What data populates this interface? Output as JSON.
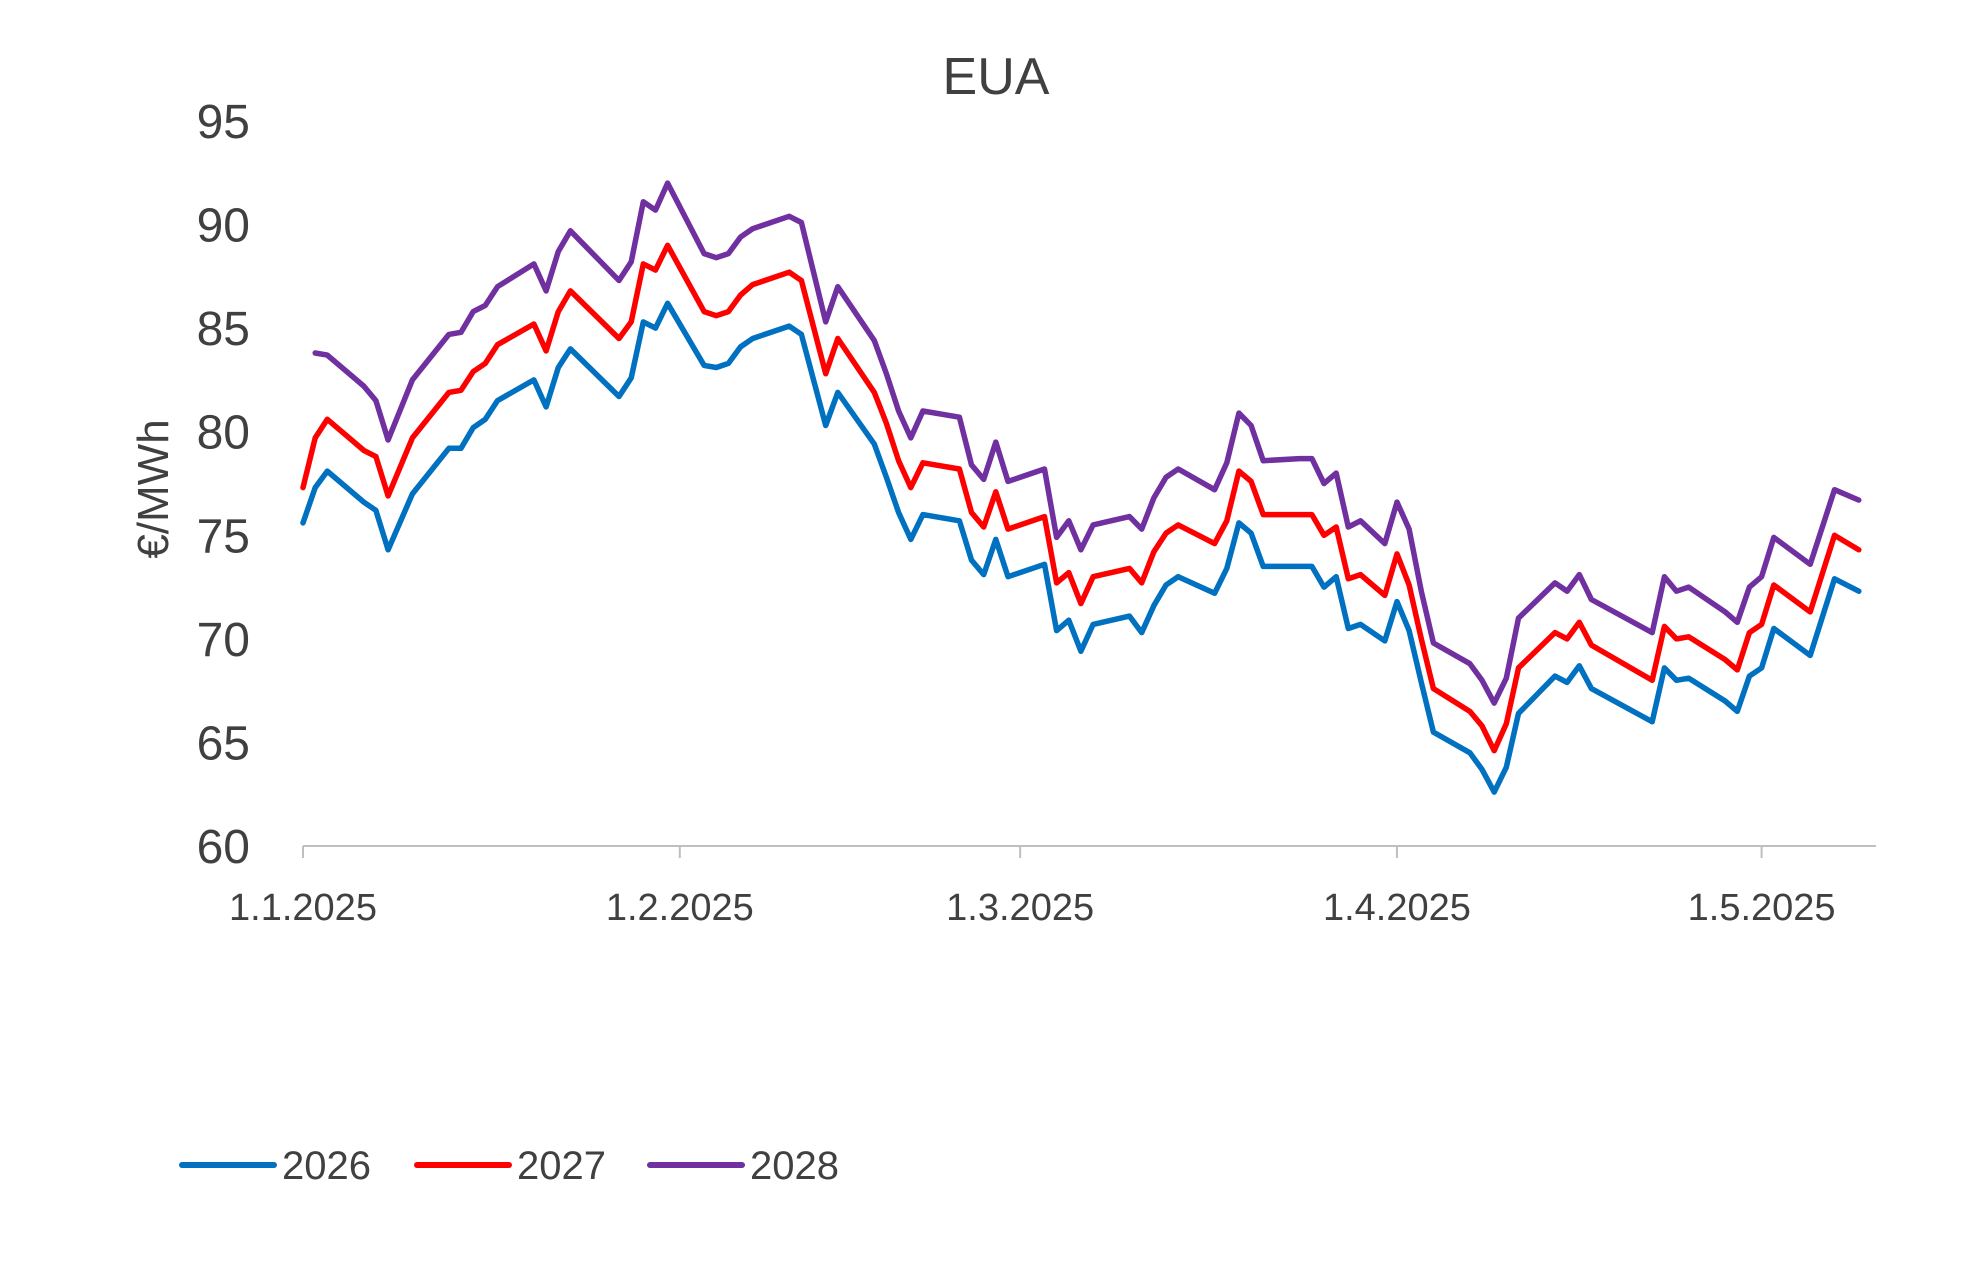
{
  "chart_data": {
    "type": "line",
    "title": "EUA",
    "ylabel": "€/MWh",
    "xlabel": "",
    "ylim": [
      60,
      95
    ],
    "yticks": [
      "60",
      "65",
      "70",
      "75",
      "80",
      "85",
      "90",
      "95"
    ],
    "xlim": [
      "2025-01-01",
      "2025-05-13"
    ],
    "xticks": [
      {
        "date": "2025-01-01",
        "label": "1.1.2025"
      },
      {
        "date": "2025-02-01",
        "label": "1.2.2025"
      },
      {
        "date": "2025-03-01",
        "label": "1.3.2025"
      },
      {
        "date": "2025-04-01",
        "label": "1.4.2025"
      },
      {
        "date": "2025-05-01",
        "label": "1.5.2025"
      }
    ],
    "grid": false,
    "legend_position": "bottom-left",
    "series": [
      {
        "name": "2026",
        "color": "#0070C0",
        "points": [
          [
            "2025-01-01",
            75.6
          ],
          [
            "2025-01-02",
            77.3
          ],
          [
            "2025-01-03",
            78.1
          ],
          [
            "2025-01-06",
            76.6
          ],
          [
            "2025-01-07",
            76.2
          ],
          [
            "2025-01-08",
            74.3
          ],
          [
            "2025-01-10",
            77.0
          ],
          [
            "2025-01-13",
            79.2
          ],
          [
            "2025-01-14",
            79.2
          ],
          [
            "2025-01-15",
            80.2
          ],
          [
            "2025-01-16",
            80.6
          ],
          [
            "2025-01-17",
            81.5
          ],
          [
            "2025-01-20",
            82.5
          ],
          [
            "2025-01-21",
            81.2
          ],
          [
            "2025-01-22",
            83.1
          ],
          [
            "2025-01-23",
            84.0
          ],
          [
            "2025-01-27",
            81.7
          ],
          [
            "2025-01-28",
            82.6
          ],
          [
            "2025-01-29",
            85.3
          ],
          [
            "2025-01-30",
            85.0
          ],
          [
            "2025-01-31",
            86.2
          ],
          [
            "2025-02-03",
            83.2
          ],
          [
            "2025-02-04",
            83.1
          ],
          [
            "2025-02-05",
            83.3
          ],
          [
            "2025-02-06",
            84.1
          ],
          [
            "2025-02-07",
            84.5
          ],
          [
            "2025-02-10",
            85.1
          ],
          [
            "2025-02-11",
            84.7
          ],
          [
            "2025-02-13",
            80.3
          ],
          [
            "2025-02-14",
            81.9
          ],
          [
            "2025-02-17",
            79.4
          ],
          [
            "2025-02-18",
            77.8
          ],
          [
            "2025-02-19",
            76.1
          ],
          [
            "2025-02-20",
            74.8
          ],
          [
            "2025-02-21",
            76.0
          ],
          [
            "2025-02-24",
            75.7
          ],
          [
            "2025-02-25",
            73.8
          ],
          [
            "2025-02-26",
            73.1
          ],
          [
            "2025-02-27",
            74.8
          ],
          [
            "2025-02-28",
            73.0
          ],
          [
            "2025-03-03",
            73.6
          ],
          [
            "2025-03-04",
            70.4
          ],
          [
            "2025-03-05",
            70.9
          ],
          [
            "2025-03-06",
            69.4
          ],
          [
            "2025-03-07",
            70.7
          ],
          [
            "2025-03-10",
            71.1
          ],
          [
            "2025-03-11",
            70.3
          ],
          [
            "2025-03-12",
            71.6
          ],
          [
            "2025-03-13",
            72.6
          ],
          [
            "2025-03-14",
            73.0
          ],
          [
            "2025-03-17",
            72.2
          ],
          [
            "2025-03-18",
            73.4
          ],
          [
            "2025-03-19",
            75.6
          ],
          [
            "2025-03-20",
            75.1
          ],
          [
            "2025-03-21",
            73.5
          ],
          [
            "2025-03-24",
            73.5
          ],
          [
            "2025-03-25",
            73.5
          ],
          [
            "2025-03-26",
            72.5
          ],
          [
            "2025-03-27",
            73.0
          ],
          [
            "2025-03-28",
            70.5
          ],
          [
            "2025-03-29",
            70.7
          ],
          [
            "2025-03-31",
            69.9
          ],
          [
            "2025-04-01",
            71.8
          ],
          [
            "2025-04-02",
            70.4
          ],
          [
            "2025-04-03",
            67.9
          ],
          [
            "2025-04-04",
            65.5
          ],
          [
            "2025-04-07",
            64.5
          ],
          [
            "2025-04-08",
            63.7
          ],
          [
            "2025-04-09",
            62.6
          ],
          [
            "2025-04-10",
            63.8
          ],
          [
            "2025-04-11",
            66.4
          ],
          [
            "2025-04-14",
            68.2
          ],
          [
            "2025-04-15",
            67.9
          ],
          [
            "2025-04-16",
            68.7
          ],
          [
            "2025-04-17",
            67.6
          ],
          [
            "2025-04-22",
            66.0
          ],
          [
            "2025-04-23",
            68.6
          ],
          [
            "2025-04-24",
            68.0
          ],
          [
            "2025-04-25",
            68.1
          ],
          [
            "2025-04-28",
            67.0
          ],
          [
            "2025-04-29",
            66.5
          ],
          [
            "2025-04-30",
            68.2
          ],
          [
            "2025-05-01",
            68.6
          ],
          [
            "2025-05-02",
            70.5
          ],
          [
            "2025-05-05",
            69.2
          ],
          [
            "2025-05-07",
            72.9
          ],
          [
            "2025-05-09",
            72.3
          ]
        ]
      },
      {
        "name": "2027",
        "color": "#FF0000",
        "points": [
          [
            "2025-01-01",
            77.3
          ],
          [
            "2025-01-02",
            79.7
          ],
          [
            "2025-01-03",
            80.6
          ],
          [
            "2025-01-06",
            79.1
          ],
          [
            "2025-01-07",
            78.8
          ],
          [
            "2025-01-08",
            76.9
          ],
          [
            "2025-01-10",
            79.7
          ],
          [
            "2025-01-13",
            81.9
          ],
          [
            "2025-01-14",
            82.0
          ],
          [
            "2025-01-15",
            82.9
          ],
          [
            "2025-01-16",
            83.3
          ],
          [
            "2025-01-17",
            84.2
          ],
          [
            "2025-01-20",
            85.2
          ],
          [
            "2025-01-21",
            83.9
          ],
          [
            "2025-01-22",
            85.8
          ],
          [
            "2025-01-23",
            86.8
          ],
          [
            "2025-01-27",
            84.5
          ],
          [
            "2025-01-28",
            85.3
          ],
          [
            "2025-01-29",
            88.1
          ],
          [
            "2025-01-30",
            87.8
          ],
          [
            "2025-01-31",
            89.0
          ],
          [
            "2025-02-03",
            85.8
          ],
          [
            "2025-02-04",
            85.6
          ],
          [
            "2025-02-05",
            85.8
          ],
          [
            "2025-02-06",
            86.6
          ],
          [
            "2025-02-07",
            87.1
          ],
          [
            "2025-02-10",
            87.7
          ],
          [
            "2025-02-11",
            87.3
          ],
          [
            "2025-02-13",
            82.8
          ],
          [
            "2025-02-14",
            84.5
          ],
          [
            "2025-02-17",
            81.9
          ],
          [
            "2025-02-18",
            80.4
          ],
          [
            "2025-02-19",
            78.6
          ],
          [
            "2025-02-20",
            77.3
          ],
          [
            "2025-02-21",
            78.5
          ],
          [
            "2025-02-24",
            78.2
          ],
          [
            "2025-02-25",
            76.1
          ],
          [
            "2025-02-26",
            75.4
          ],
          [
            "2025-02-27",
            77.1
          ],
          [
            "2025-02-28",
            75.3
          ],
          [
            "2025-03-03",
            75.9
          ],
          [
            "2025-03-04",
            72.7
          ],
          [
            "2025-03-05",
            73.2
          ],
          [
            "2025-03-06",
            71.7
          ],
          [
            "2025-03-07",
            73.0
          ],
          [
            "2025-03-10",
            73.4
          ],
          [
            "2025-03-11",
            72.7
          ],
          [
            "2025-03-12",
            74.2
          ],
          [
            "2025-03-13",
            75.1
          ],
          [
            "2025-03-14",
            75.5
          ],
          [
            "2025-03-17",
            74.6
          ],
          [
            "2025-03-18",
            75.7
          ],
          [
            "2025-03-19",
            78.1
          ],
          [
            "2025-03-20",
            77.6
          ],
          [
            "2025-03-21",
            76.0
          ],
          [
            "2025-03-24",
            76.0
          ],
          [
            "2025-03-25",
            76.0
          ],
          [
            "2025-03-26",
            75.0
          ],
          [
            "2025-03-27",
            75.4
          ],
          [
            "2025-03-28",
            72.9
          ],
          [
            "2025-03-29",
            73.1
          ],
          [
            "2025-03-31",
            72.1
          ],
          [
            "2025-04-01",
            74.1
          ],
          [
            "2025-04-02",
            72.6
          ],
          [
            "2025-04-03",
            70.0
          ],
          [
            "2025-04-04",
            67.6
          ],
          [
            "2025-04-07",
            66.5
          ],
          [
            "2025-04-08",
            65.8
          ],
          [
            "2025-04-09",
            64.6
          ],
          [
            "2025-04-10",
            65.9
          ],
          [
            "2025-04-11",
            68.6
          ],
          [
            "2025-04-14",
            70.3
          ],
          [
            "2025-04-15",
            70.0
          ],
          [
            "2025-04-16",
            70.8
          ],
          [
            "2025-04-17",
            69.7
          ],
          [
            "2025-04-22",
            68.0
          ],
          [
            "2025-04-23",
            70.6
          ],
          [
            "2025-04-24",
            70.0
          ],
          [
            "2025-04-25",
            70.1
          ],
          [
            "2025-04-28",
            69.0
          ],
          [
            "2025-04-29",
            68.5
          ],
          [
            "2025-04-30",
            70.3
          ],
          [
            "2025-05-01",
            70.7
          ],
          [
            "2025-05-02",
            72.6
          ],
          [
            "2025-05-05",
            71.3
          ],
          [
            "2025-05-07",
            75.0
          ],
          [
            "2025-05-09",
            74.3
          ]
        ]
      },
      {
        "name": "2028",
        "color": "#7030A0",
        "points": [
          [
            "2025-01-02",
            83.8
          ],
          [
            "2025-01-03",
            83.7
          ],
          [
            "2025-01-06",
            82.2
          ],
          [
            "2025-01-07",
            81.5
          ],
          [
            "2025-01-08",
            79.6
          ],
          [
            "2025-01-10",
            82.5
          ],
          [
            "2025-01-13",
            84.7
          ],
          [
            "2025-01-14",
            84.8
          ],
          [
            "2025-01-15",
            85.8
          ],
          [
            "2025-01-16",
            86.1
          ],
          [
            "2025-01-17",
            87.0
          ],
          [
            "2025-01-20",
            88.1
          ],
          [
            "2025-01-21",
            86.8
          ],
          [
            "2025-01-22",
            88.7
          ],
          [
            "2025-01-23",
            89.7
          ],
          [
            "2025-01-27",
            87.3
          ],
          [
            "2025-01-28",
            88.2
          ],
          [
            "2025-01-29",
            91.1
          ],
          [
            "2025-01-30",
            90.7
          ],
          [
            "2025-01-31",
            92.0
          ],
          [
            "2025-02-03",
            88.6
          ],
          [
            "2025-02-04",
            88.4
          ],
          [
            "2025-02-05",
            88.6
          ],
          [
            "2025-02-06",
            89.4
          ],
          [
            "2025-02-07",
            89.8
          ],
          [
            "2025-02-10",
            90.4
          ],
          [
            "2025-02-11",
            90.1
          ],
          [
            "2025-02-13",
            85.3
          ],
          [
            "2025-02-14",
            87.0
          ],
          [
            "2025-02-17",
            84.4
          ],
          [
            "2025-02-18",
            82.8
          ],
          [
            "2025-02-19",
            81.0
          ],
          [
            "2025-02-20",
            79.7
          ],
          [
            "2025-02-21",
            81.0
          ],
          [
            "2025-02-24",
            80.7
          ],
          [
            "2025-02-25",
            78.4
          ],
          [
            "2025-02-26",
            77.7
          ],
          [
            "2025-02-27",
            79.5
          ],
          [
            "2025-02-28",
            77.6
          ],
          [
            "2025-03-03",
            78.2
          ],
          [
            "2025-03-04",
            74.9
          ],
          [
            "2025-03-05",
            75.7
          ],
          [
            "2025-03-06",
            74.3
          ],
          [
            "2025-03-07",
            75.5
          ],
          [
            "2025-03-10",
            75.9
          ],
          [
            "2025-03-11",
            75.3
          ],
          [
            "2025-03-12",
            76.8
          ],
          [
            "2025-03-13",
            77.8
          ],
          [
            "2025-03-14",
            78.2
          ],
          [
            "2025-03-17",
            77.2
          ],
          [
            "2025-03-18",
            78.5
          ],
          [
            "2025-03-19",
            80.9
          ],
          [
            "2025-03-20",
            80.3
          ],
          [
            "2025-03-21",
            78.6
          ],
          [
            "2025-03-24",
            78.7
          ],
          [
            "2025-03-25",
            78.7
          ],
          [
            "2025-03-26",
            77.5
          ],
          [
            "2025-03-27",
            78.0
          ],
          [
            "2025-03-28",
            75.4
          ],
          [
            "2025-03-29",
            75.7
          ],
          [
            "2025-03-31",
            74.6
          ],
          [
            "2025-04-01",
            76.6
          ],
          [
            "2025-04-02",
            75.3
          ],
          [
            "2025-04-03",
            72.3
          ],
          [
            "2025-04-04",
            69.8
          ],
          [
            "2025-04-07",
            68.8
          ],
          [
            "2025-04-08",
            68.0
          ],
          [
            "2025-04-09",
            66.9
          ],
          [
            "2025-04-10",
            68.1
          ],
          [
            "2025-04-11",
            71.0
          ],
          [
            "2025-04-14",
            72.7
          ],
          [
            "2025-04-15",
            72.3
          ],
          [
            "2025-04-16",
            73.1
          ],
          [
            "2025-04-17",
            71.9
          ],
          [
            "2025-04-22",
            70.3
          ],
          [
            "2025-04-23",
            73.0
          ],
          [
            "2025-04-24",
            72.3
          ],
          [
            "2025-04-25",
            72.5
          ],
          [
            "2025-04-28",
            71.3
          ],
          [
            "2025-04-29",
            70.8
          ],
          [
            "2025-04-30",
            72.5
          ],
          [
            "2025-05-01",
            73.0
          ],
          [
            "2025-05-02",
            74.9
          ],
          [
            "2025-05-05",
            73.6
          ],
          [
            "2025-05-07",
            77.2
          ],
          [
            "2025-05-09",
            76.7
          ]
        ]
      }
    ]
  }
}
